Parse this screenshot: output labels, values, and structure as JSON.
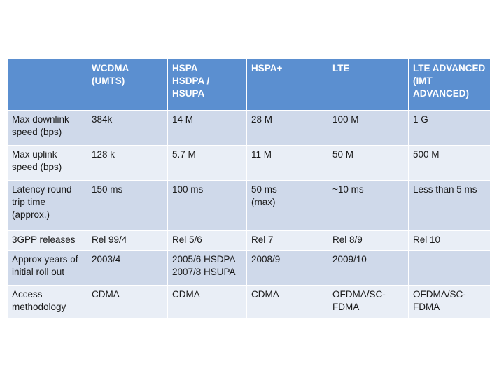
{
  "table": {
    "columns": [
      "",
      "WCDMA\n(UMTS)",
      "HSPA\nHSDPA / HSUPA",
      "HSPA+",
      "LTE",
      "LTE ADVANCED\n(IMT\nADVANCED)"
    ],
    "rows": [
      {
        "label": "Max downlink\nspeed (bps)",
        "cells": [
          "384k",
          "14 M",
          "28 M",
          "100 M",
          "1 G"
        ]
      },
      {
        "label": "Max uplink\nspeed (bps)",
        "cells": [
          "128 k",
          "5.7 M",
          "11 M",
          "50 M",
          "500 M"
        ]
      },
      {
        "label": "Latency round\ntrip time\n(approx.)",
        "cells": [
          "150 ms",
          "100 ms",
          "50 ms\n(max)",
          "~10 ms",
          "Less than 5 ms"
        ]
      },
      {
        "label": "3GPP releases",
        "cells": [
          "Rel 99/4",
          "Rel 5/6",
          "Rel 7",
          "Rel 8/9",
          "Rel 10"
        ]
      },
      {
        "label": "Approx years of\ninitial roll out",
        "cells": [
          "2003/4",
          "2005/6 HSDPA\n2007/8 HSUPA",
          "2008/9",
          "2009/10",
          ""
        ]
      },
      {
        "label": "Access\nmethodology",
        "cells": [
          "CDMA",
          "CDMA",
          "CDMA",
          "OFDMA/SC-\nFDMA",
          "OFDMA/SC-\nFDMA"
        ]
      }
    ]
  }
}
